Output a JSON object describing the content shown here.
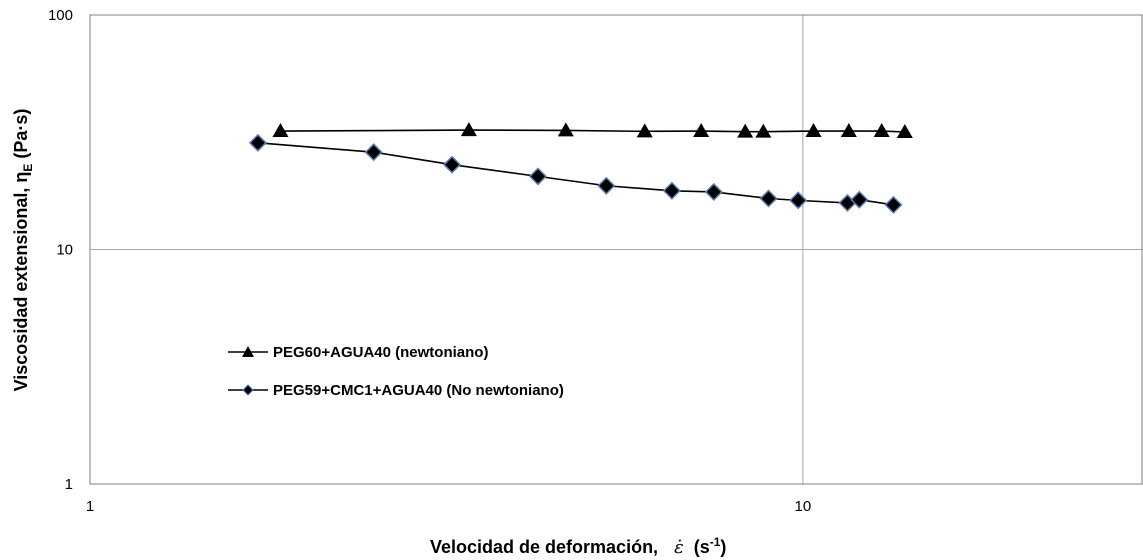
{
  "chart_data": {
    "type": "scatter",
    "xscale": "log",
    "yscale": "log",
    "xlim": [
      1,
      30
    ],
    "ylim": [
      1,
      100
    ],
    "xticks": [
      "1",
      "10"
    ],
    "yticks": [
      "1",
      "10",
      "100"
    ],
    "xlabel_text": "Velocidad de deformación,",
    "xlabel_symbol": "ε̇",
    "xlabel_unit": "(s",
    "xlabel_unit_exp": "-1",
    "xlabel_unit_close": ")",
    "ylabel_text": "Viscosidad extensional, η",
    "ylabel_sub": "E",
    "ylabel_unit": " (Pa·s)",
    "grid": true,
    "legend_position": "center-left",
    "series": [
      {
        "name": "PEG60+AGUA40 (newtoniano)",
        "marker": "triangle",
        "color": "#000000",
        "x": [
          1.85,
          3.4,
          4.65,
          6.0,
          7.2,
          8.3,
          8.8,
          10.35,
          11.6,
          12.9,
          13.9
        ],
        "y": [
          32.0,
          32.3,
          32.2,
          31.9,
          32.0,
          31.8,
          31.8,
          32.0,
          32.0,
          32.0,
          31.7
        ]
      },
      {
        "name": "PEG59+CMC1+AGUA40 (No newtoniano)",
        "marker": "diamond",
        "color": "#000000",
        "x": [
          1.72,
          2.5,
          3.22,
          4.25,
          5.3,
          6.55,
          7.5,
          8.95,
          9.85,
          11.55,
          12.0,
          13.4
        ],
        "y": [
          28.5,
          26.0,
          23.0,
          20.5,
          18.7,
          17.8,
          17.6,
          16.5,
          16.2,
          15.8,
          16.3,
          15.5
        ]
      }
    ]
  }
}
